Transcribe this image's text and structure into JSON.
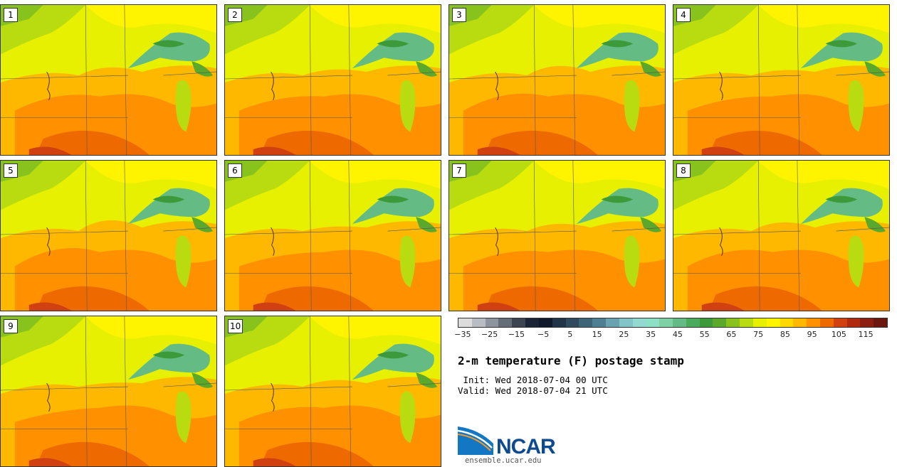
{
  "members": [
    {
      "label": "1"
    },
    {
      "label": "2"
    },
    {
      "label": "3"
    },
    {
      "label": "4"
    },
    {
      "label": "5"
    },
    {
      "label": "6"
    },
    {
      "label": "7"
    },
    {
      "label": "8"
    },
    {
      "label": "9"
    },
    {
      "label": "10"
    }
  ],
  "colorbar": {
    "colors": [
      "#dcdcdc",
      "#b9bcc2",
      "#8e949e",
      "#646c78",
      "#3c4452",
      "#1a2436",
      "#111a2c",
      "#223448",
      "#304a5e",
      "#3e6478",
      "#4e7f92",
      "#6aa3b0",
      "#82c4c8",
      "#94d9cf",
      "#8ee0c4",
      "#7fd0a4",
      "#64bc84",
      "#4caa5c",
      "#3c9a3a",
      "#5aa82c",
      "#88c21c",
      "#b8dc10",
      "#e6f000",
      "#fff400",
      "#ffd800",
      "#ffb800",
      "#ff9000",
      "#ee6a00",
      "#d04010",
      "#b02a10",
      "#8c1e12",
      "#6a1810"
    ],
    "ticks": [
      "−35",
      "−25",
      "−15",
      "−5",
      "5",
      "15",
      "25",
      "35",
      "45",
      "55",
      "65",
      "75",
      "85",
      "95",
      "105",
      "115"
    ]
  },
  "title": "2-m temperature (F) postage stamp",
  "init_line": " Init: Wed 2018-07-04 00 UTC",
  "valid_line": "Valid: Wed 2018-07-04 21 UTC",
  "logo": {
    "text": "NCAR",
    "url": "ensemble.ucar.edu"
  }
}
